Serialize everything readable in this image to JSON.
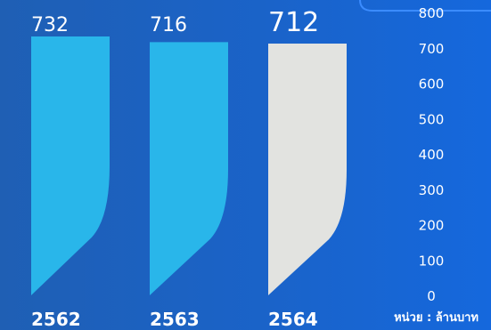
{
  "chart_data": {
    "type": "bar",
    "categories": [
      "2562",
      "2563",
      "2564"
    ],
    "values": [
      732,
      716,
      712
    ],
    "ylim": [
      0,
      800
    ],
    "yticks": [
      0,
      100,
      200,
      300,
      400,
      500,
      600,
      700,
      800
    ],
    "unit_note": "หน่วย : ล้านบาท",
    "grid": false,
    "colors": {
      "bar_previous": "#29b6ea",
      "bar_current": "#e2e3e0",
      "background": "#1a63c9",
      "text": "#ffffff"
    }
  }
}
